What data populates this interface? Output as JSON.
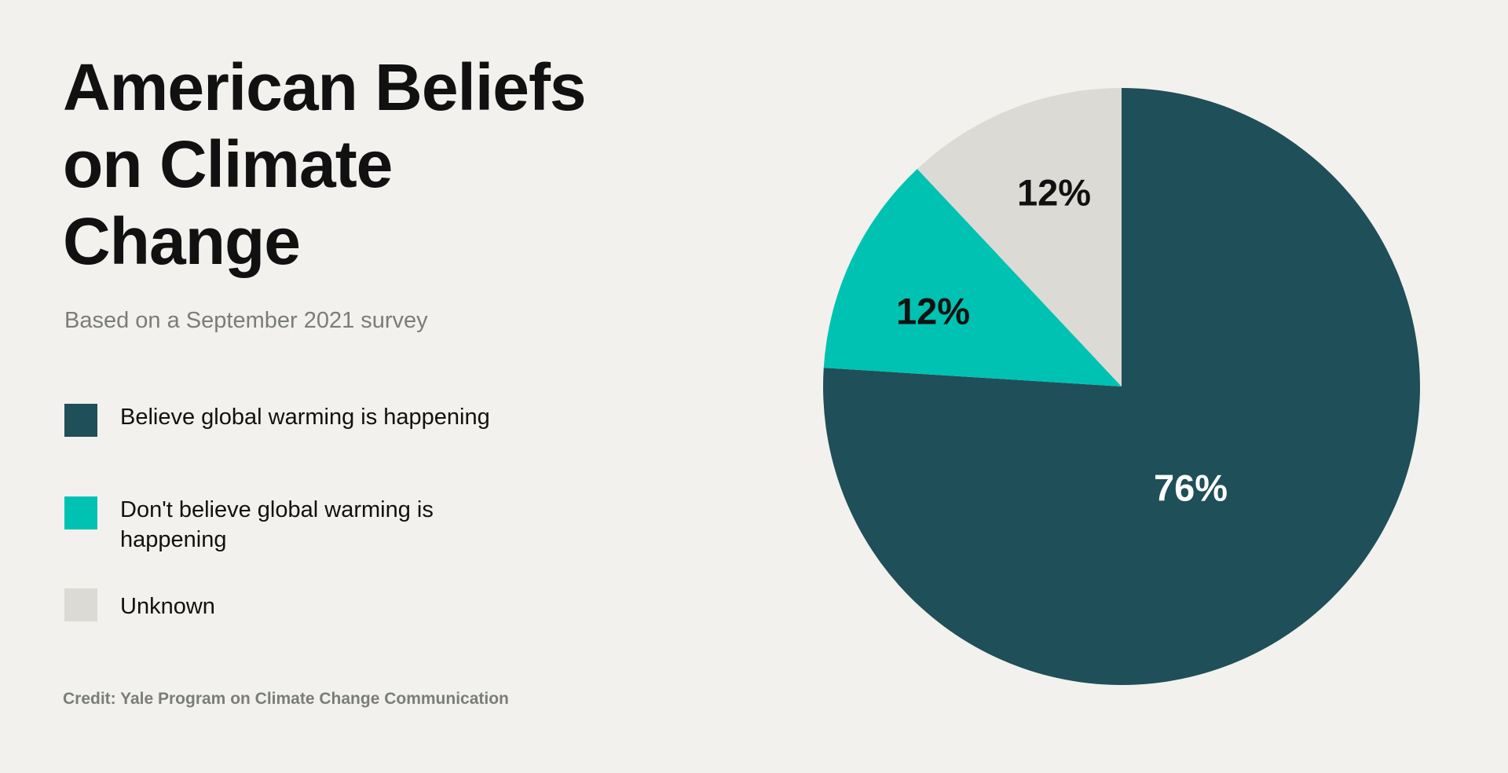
{
  "chart_data": {
    "type": "pie",
    "title": "American Beliefs on Climate Change",
    "subtitle": "Based on a September 2021 survey",
    "credit": "Credit: Yale Program on Climate Change Communication",
    "legend_position": "left",
    "slices": [
      {
        "name": "Believe global warming is happening",
        "value": 76,
        "label": "76%",
        "color": "#1f4f58",
        "label_color": "#ffffff"
      },
      {
        "name": "Don't believe global warming is happening",
        "value": 12,
        "label": "12%",
        "color": "#00c2b2",
        "label_color": "#111111"
      },
      {
        "name": "Unknown",
        "value": 12,
        "label": "12%",
        "color": "#dcdad4",
        "label_color": "#111111"
      }
    ]
  }
}
